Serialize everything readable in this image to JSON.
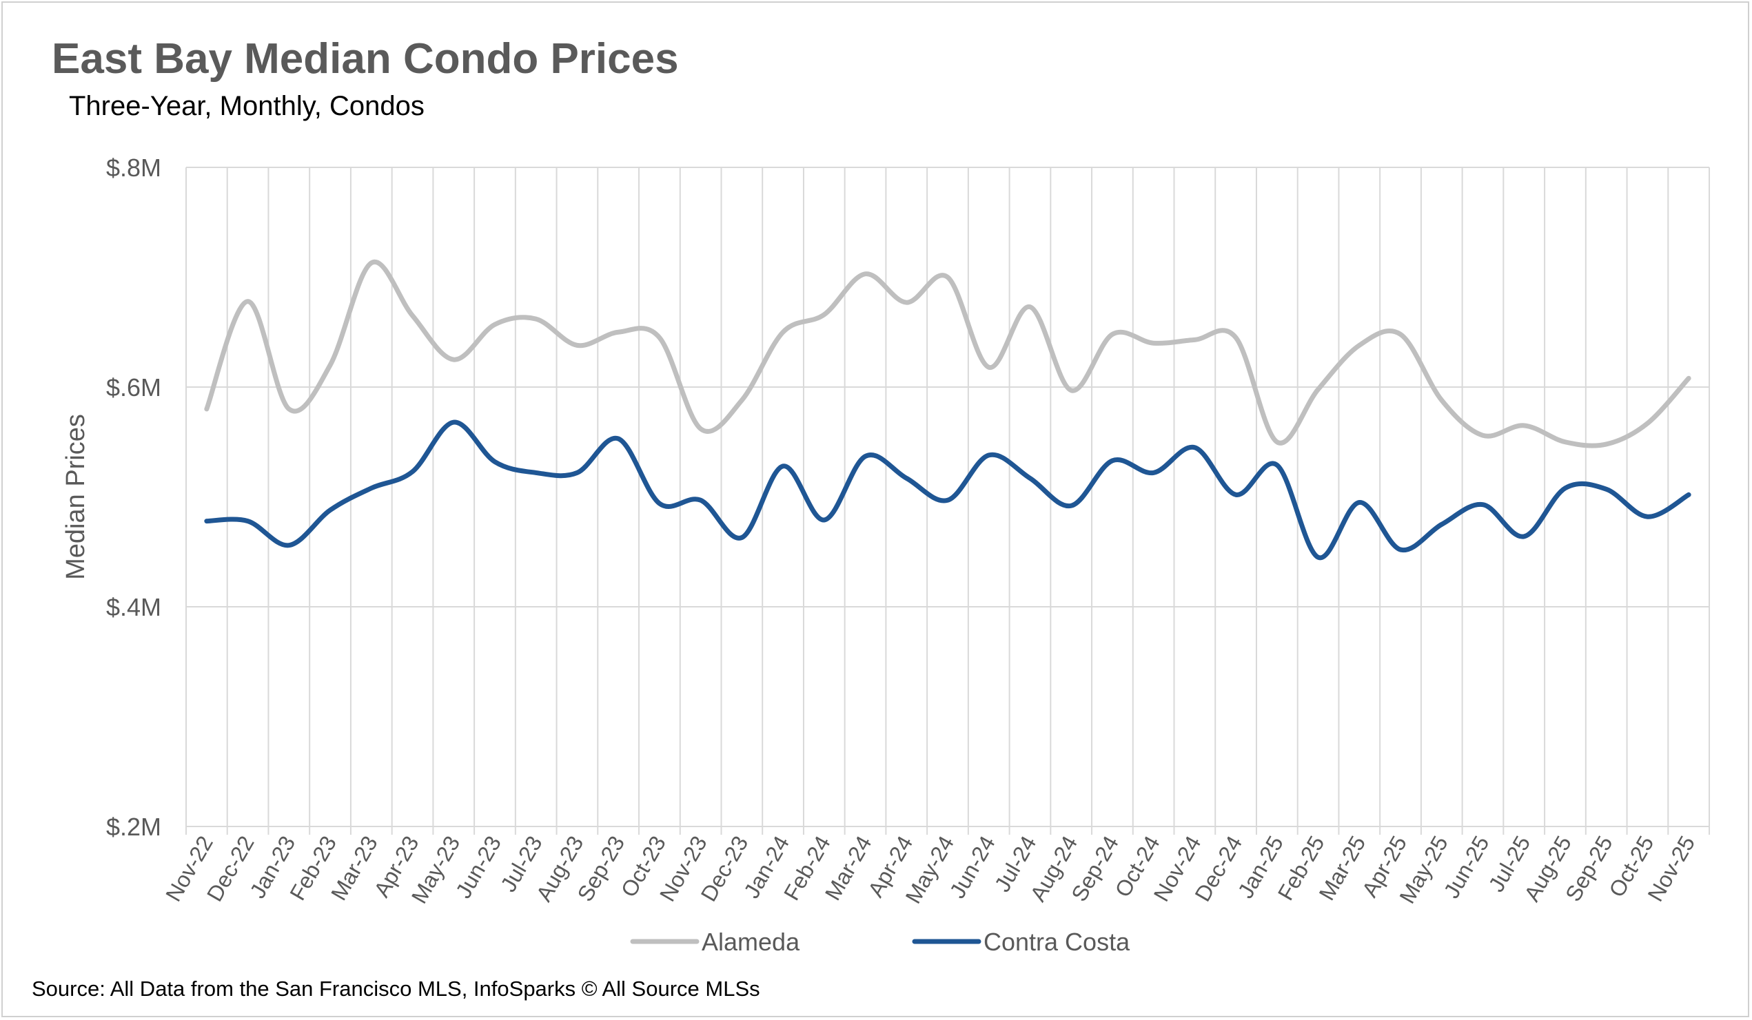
{
  "title": "East Bay Median Condo Prices",
  "subtitle": "Three-Year, Monthly, Condos",
  "source": "Source: All Data from the San Francisco MLS, InfoSparks © All Source MLSs",
  "chart_data": {
    "type": "line",
    "title": "East Bay Median Condo Prices",
    "subtitle": "Three-Year, Monthly, Condos",
    "xlabel": "",
    "ylabel": "Median Prices",
    "ylim": [
      200000,
      800000
    ],
    "yticks": [
      200000,
      400000,
      600000,
      800000
    ],
    "ytick_labels": [
      "$.2M",
      "$.4M",
      "$.6M",
      "$.8M"
    ],
    "grid": true,
    "legend_position": "bottom",
    "x": [
      "Nov-22",
      "Dec-22",
      "Jan-23",
      "Feb-23",
      "Mar-23",
      "Apr-23",
      "May-23",
      "Jun-23",
      "Jul-23",
      "Aug-23",
      "Sep-23",
      "Oct-23",
      "Nov-23",
      "Dec-23",
      "Jan-24",
      "Feb-24",
      "Mar-24",
      "Apr-24",
      "May-24",
      "Jun-24",
      "Jul-24",
      "Aug-24",
      "Sep-24",
      "Oct-24",
      "Nov-24",
      "Dec-24",
      "Jan-25",
      "Feb-25",
      "Mar-25",
      "Apr-25",
      "May-25",
      "Jun-25",
      "Jul-25",
      "Aug-25",
      "Sep-25",
      "Oct-25",
      "Nov-25"
    ],
    "series": [
      {
        "name": "Alameda",
        "color": "#bfbfbf",
        "values": [
          580000,
          678000,
          580000,
          620000,
          713000,
          665000,
          625000,
          657000,
          662000,
          638000,
          650000,
          645000,
          562000,
          588000,
          650000,
          666000,
          703000,
          677000,
          700000,
          618000,
          673000,
          597000,
          648000,
          640000,
          643000,
          645000,
          550000,
          598000,
          638000,
          648000,
          588000,
          556000,
          565000,
          550000,
          548000,
          567000,
          608000
        ]
      },
      {
        "name": "Contra Costa",
        "color": "#1f5694",
        "values": [
          478000,
          478000,
          456000,
          488000,
          508000,
          523000,
          568000,
          532000,
          522000,
          522000,
          553000,
          494000,
          497000,
          463000,
          528000,
          479000,
          537000,
          517000,
          497000,
          538000,
          517000,
          492000,
          533000,
          522000,
          545000,
          502000,
          529000,
          445000,
          495000,
          452000,
          475000,
          493000,
          464000,
          508000,
          507000,
          482000,
          502000
        ]
      }
    ]
  }
}
